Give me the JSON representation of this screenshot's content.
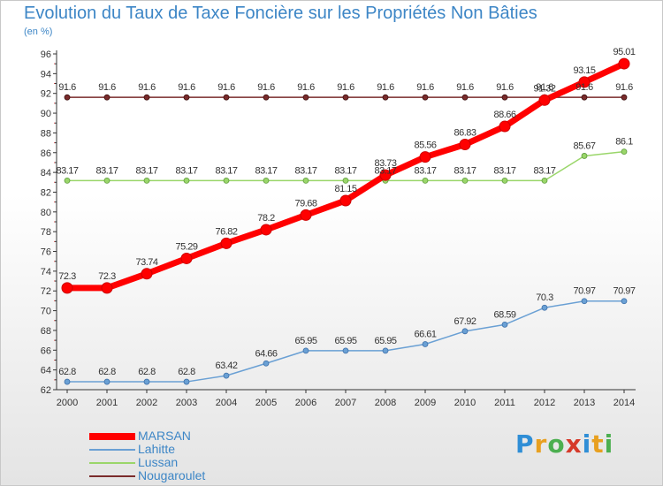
{
  "title": "Evolution du Taux de Taxe Foncière sur les Propriétés Non Bâties",
  "subtitle": "(en %)",
  "logo": {
    "text": "Proxiti",
    "letter_colors": [
      "#2f8ed6",
      "#e8a020",
      "#4caf50",
      "#d63a2a",
      "#2f8ed6",
      "#e8a020",
      "#4caf50"
    ]
  },
  "chart_data": {
    "type": "line",
    "title": "Evolution du Taux de Taxe Foncière sur les Propriétés Non Bâties",
    "ylabel": "(en %)",
    "xlabel": "",
    "x": [
      2000,
      2001,
      2002,
      2003,
      2004,
      2005,
      2006,
      2007,
      2008,
      2009,
      2010,
      2011,
      2012,
      2013,
      2014
    ],
    "ylim": [
      62,
      96
    ],
    "yticks": [
      62,
      64,
      66,
      68,
      70,
      72,
      74,
      76,
      78,
      80,
      82,
      84,
      86,
      88,
      90,
      92,
      94,
      96
    ],
    "grid": false,
    "legend_position": "bottom-left",
    "series": [
      {
        "name": "MARSAN",
        "color": "#ff0000",
        "values": [
          72.3,
          72.3,
          73.74,
          75.29,
          76.82,
          78.2,
          79.68,
          81.15,
          83.73,
          85.56,
          86.83,
          88.66,
          91.32,
          93.15,
          95.01
        ],
        "labels": [
          "72.3",
          "72.3",
          "73.74",
          "75.29",
          "76.82",
          "78.2",
          "79.68",
          "81.15",
          "83.73",
          "85.56",
          "86.83",
          "88.66",
          "91.32",
          "93.15",
          "95.01"
        ]
      },
      {
        "name": "Lahitte",
        "color": "#6aa0d4",
        "values": [
          62.8,
          62.8,
          62.8,
          62.8,
          63.42,
          64.66,
          65.95,
          65.95,
          65.95,
          66.61,
          67.92,
          68.59,
          70.3,
          70.97,
          70.97
        ],
        "labels": [
          "62.8",
          "62.8",
          "62.8",
          "62.8",
          "63.42",
          "64.66",
          "65.95",
          "65.95",
          "65.95",
          "66.61",
          "67.92",
          "68.59",
          "70.3",
          "70.97",
          "70.97"
        ]
      },
      {
        "name": "Lussan",
        "color": "#9ad66a",
        "values": [
          83.17,
          83.17,
          83.17,
          83.17,
          83.17,
          83.17,
          83.17,
          83.17,
          83.17,
          83.17,
          83.17,
          83.17,
          83.17,
          85.67,
          86.1
        ],
        "labels": [
          "83.17",
          "83.17",
          "83.17",
          "83.17",
          "83.17",
          "83.17",
          "83.17",
          "83.17",
          "83.17",
          "83.17",
          "83.17",
          "83.17",
          "83.17",
          "85.67",
          "86.1"
        ]
      },
      {
        "name": "Nougaroulet",
        "color": "#7a2b2b",
        "values": [
          91.6,
          91.6,
          91.6,
          91.6,
          91.6,
          91.6,
          91.6,
          91.6,
          91.6,
          91.6,
          91.6,
          91.6,
          91.6,
          91.6,
          91.6
        ],
        "labels": [
          "91.6",
          "91.6",
          "91.6",
          "91.6",
          "91.6",
          "91.6",
          "91.6",
          "91.6",
          "91.6",
          "91.6",
          "91.6",
          "91.6",
          "91.6",
          "91.6",
          "91.6"
        ]
      }
    ]
  }
}
